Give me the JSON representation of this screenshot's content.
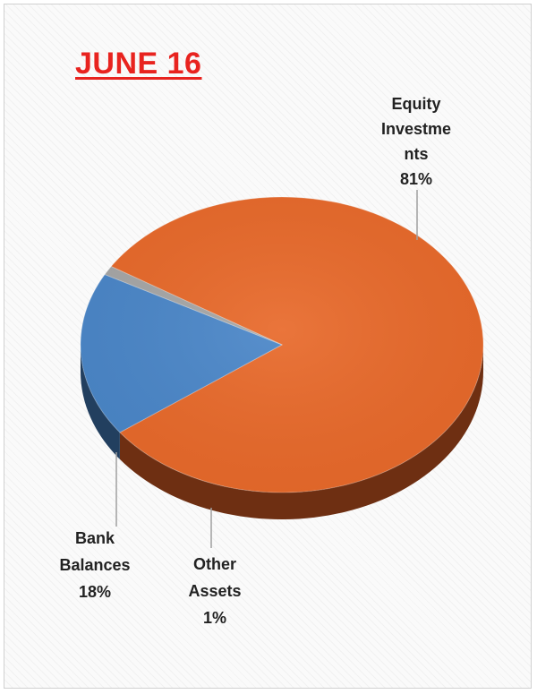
{
  "chart_data": {
    "type": "pie",
    "title": "JUNE 16",
    "slices": [
      {
        "label_lines": [
          "Equity",
          "Investme",
          "nts"
        ],
        "percent_label": "81%",
        "value": 81,
        "color": "#e8692a",
        "side_color": "#6e2f12"
      },
      {
        "label_lines": [
          "Bank",
          "Balances"
        ],
        "percent_label": "18%",
        "value": 18,
        "color": "#4a86c8",
        "side_color": "#223f5f"
      },
      {
        "label_lines": [
          "Other",
          "Assets"
        ],
        "percent_label": "1%",
        "value": 1,
        "color": "#a6a6a6",
        "side_color": "#555555"
      }
    ],
    "legend": "none",
    "style": "3d"
  }
}
